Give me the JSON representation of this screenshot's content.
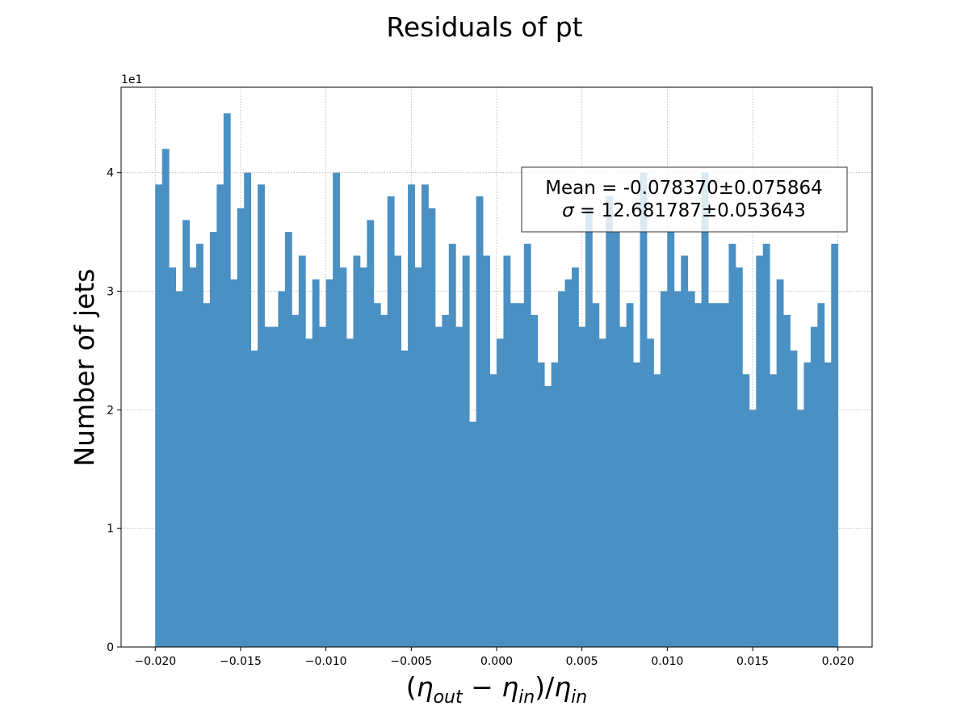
{
  "chart_data": {
    "type": "bar",
    "title": "Residuals of pt",
    "ylabel": "Number of jets",
    "xlabel_parts": {
      "open": "(",
      "eta1": "η",
      "sub_out": "out",
      "minus": " − ",
      "eta2": "η",
      "sub_in1": "in",
      "close": ")/",
      "eta3": "η",
      "sub_in2": "in"
    },
    "y_offset_text": "1e1",
    "y_scale": 10,
    "xlim": [
      -0.022,
      0.022
    ],
    "ylim": [
      0,
      4.72
    ],
    "x_ticks": [
      -0.02,
      -0.015,
      -0.01,
      -0.005,
      0.0,
      0.005,
      0.01,
      0.015,
      0.02
    ],
    "x_tick_labels": [
      "−0.020",
      "−0.015",
      "−0.010",
      "−0.005",
      "0.000",
      "0.005",
      "0.010",
      "0.015",
      "0.020"
    ],
    "y_ticks": [
      0,
      1,
      2,
      3,
      4
    ],
    "y_tick_labels": [
      "0",
      "1",
      "2",
      "3",
      "4"
    ],
    "grid": true,
    "bar_color": "#4a90c2",
    "bin_range": [
      -0.02,
      0.02
    ],
    "values": [
      39,
      42,
      32,
      30,
      36,
      32,
      34,
      29,
      35,
      39,
      45,
      31,
      37,
      40,
      25,
      39,
      27,
      27,
      30,
      35,
      28,
      33,
      26,
      31,
      27,
      31,
      40,
      32,
      26,
      33,
      32,
      36,
      29,
      28,
      38,
      33,
      25,
      39,
      32,
      39,
      37,
      27,
      28,
      34,
      27,
      33,
      19,
      38,
      33,
      23,
      26,
      33,
      29,
      29,
      34,
      28,
      24,
      22,
      24,
      30,
      31,
      32,
      27,
      37,
      29,
      26,
      38,
      35,
      27,
      29,
      24,
      40,
      26,
      23,
      30,
      35,
      30,
      33,
      30,
      29,
      40,
      29,
      29,
      29,
      34,
      32,
      23,
      20,
      33,
      34,
      23,
      31,
      28,
      25,
      20,
      24,
      27,
      29,
      24,
      34
    ],
    "annotation": {
      "line1": "Mean = -0.078370±0.075864",
      "line2_symbol": "σ",
      "line2_rest": " = 12.681787±0.053643"
    }
  }
}
